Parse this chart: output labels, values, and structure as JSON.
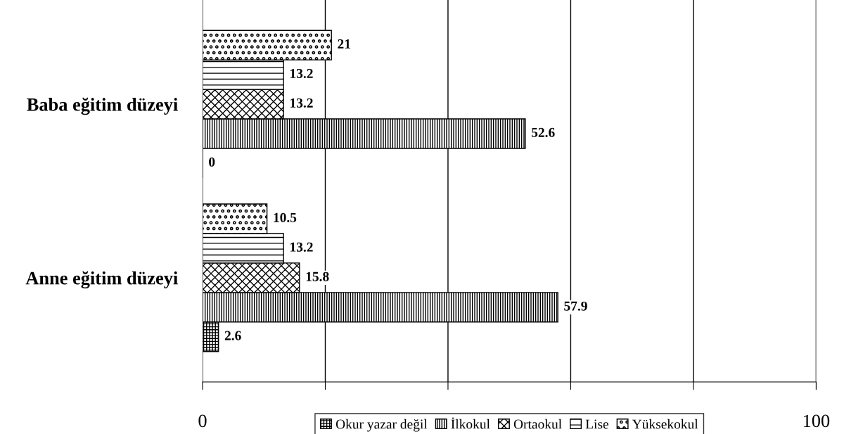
{
  "chart_data": {
    "type": "bar",
    "orientation": "horizontal",
    "categories": [
      "Baba eğitim düzeyi",
      "Anne eğitim düzeyi"
    ],
    "series": [
      {
        "name": "Okur yazar değil",
        "color": "#000000",
        "values": [
          0,
          2.6
        ]
      },
      {
        "name": "İlkokul",
        "color": "#000000",
        "values": [
          52.6,
          57.9
        ]
      },
      {
        "name": "Ortaokul",
        "color": "#000000",
        "values": [
          13.2,
          15.8
        ]
      },
      {
        "name": "Lise",
        "color": "#000000",
        "values": [
          13.2,
          13.2
        ]
      },
      {
        "name": "Yüksekokul",
        "color": "#000000",
        "values": [
          21,
          10.5
        ]
      }
    ],
    "xlim": [
      0,
      100
    ],
    "xticks": [
      0,
      {
        "value": 20,
        "label": null
      },
      {
        "value": 40,
        "label": null
      },
      {
        "value": 60,
        "label": null
      },
      {
        "value": 80,
        "label": null
      },
      100
    ],
    "grid": "x",
    "legend": "bottom",
    "data_labels": true
  }
}
